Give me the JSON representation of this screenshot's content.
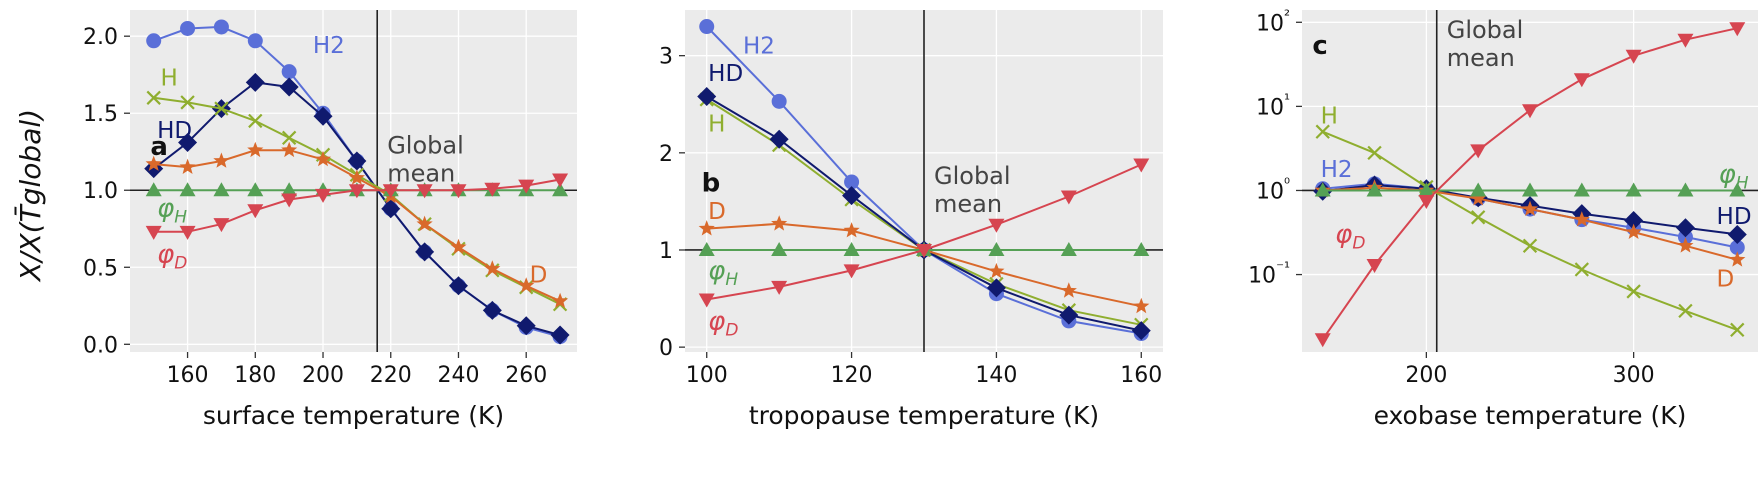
{
  "figure": {
    "ylabel": "X/X(T̄global)",
    "colors": {
      "H2": "#5a6fd8",
      "HD": "#101a6e",
      "H": "#8fae2f",
      "D": "#d9692b",
      "phi_H": "#55a055",
      "phi_D": "#d64550"
    }
  },
  "chart_data": [
    {
      "type": "line",
      "panel": "a",
      "xlabel": "surface temperature (K)",
      "ylabel": "X/X(T̄global)",
      "xlim": [
        143,
        275
      ],
      "ylim": [
        -0.05,
        2.17
      ],
      "yscale": "linear",
      "xticks": [
        160,
        180,
        200,
        220,
        240,
        260
      ],
      "yticks": [
        0.0,
        0.5,
        1.0,
        1.5,
        2.0
      ],
      "ytick_labels": [
        "0.0",
        "0.5",
        "1.0",
        "1.5",
        "2.0"
      ],
      "global_mean_x": 216,
      "annotation": [
        "Global",
        "mean"
      ],
      "grid": true,
      "series": [
        {
          "name": "H2",
          "key": "H2",
          "marker": "circle",
          "x": [
            150,
            160,
            170,
            180,
            190,
            200,
            210,
            220,
            230,
            240,
            250,
            260,
            270
          ],
          "y": [
            1.97,
            2.05,
            2.06,
            1.97,
            1.77,
            1.5,
            1.19,
            0.88,
            0.6,
            0.38,
            0.22,
            0.11,
            0.05
          ]
        },
        {
          "name": "HD",
          "key": "HD",
          "marker": "diamond",
          "x": [
            150,
            160,
            170,
            180,
            190,
            200,
            210,
            220,
            230,
            240,
            250,
            260,
            270
          ],
          "y": [
            1.14,
            1.31,
            1.53,
            1.7,
            1.67,
            1.48,
            1.19,
            0.88,
            0.6,
            0.38,
            0.22,
            0.12,
            0.06
          ]
        },
        {
          "name": "H",
          "key": "H",
          "marker": "x",
          "x": [
            150,
            160,
            170,
            180,
            190,
            200,
            210,
            220,
            230,
            240,
            250,
            260,
            270
          ],
          "y": [
            1.6,
            1.57,
            1.53,
            1.45,
            1.34,
            1.23,
            1.1,
            0.97,
            0.78,
            0.62,
            0.48,
            0.37,
            0.26
          ]
        },
        {
          "name": "D",
          "key": "D",
          "marker": "star",
          "x": [
            150,
            160,
            170,
            180,
            190,
            200,
            210,
            220,
            230,
            240,
            250,
            260,
            270
          ],
          "y": [
            1.17,
            1.15,
            1.19,
            1.26,
            1.26,
            1.2,
            1.08,
            0.96,
            0.78,
            0.63,
            0.49,
            0.38,
            0.28
          ]
        },
        {
          "name": "φH",
          "key": "phi_H",
          "marker": "triangle-up",
          "x": [
            150,
            160,
            170,
            180,
            190,
            200,
            210,
            220,
            230,
            240,
            250,
            260,
            270
          ],
          "y": [
            1.0,
            1.0,
            1.0,
            1.0,
            1.0,
            1.0,
            1.0,
            1.0,
            1.0,
            1.0,
            1.0,
            1.0,
            1.0
          ]
        },
        {
          "name": "φD",
          "key": "phi_D",
          "marker": "triangle-down",
          "x": [
            150,
            160,
            170,
            180,
            190,
            200,
            210,
            220,
            230,
            240,
            250,
            260,
            270
          ],
          "y": [
            0.73,
            0.73,
            0.78,
            0.87,
            0.94,
            0.97,
            1.0,
            1.0,
            1.0,
            1.0,
            1.01,
            1.03,
            1.07
          ]
        }
      ],
      "labels": [
        {
          "text": "H2",
          "key": "H2",
          "x": 197,
          "y": 1.89,
          "italic": false
        },
        {
          "text": "H",
          "key": "H",
          "x": 152,
          "y": 1.68,
          "italic": false
        },
        {
          "text": "HD",
          "key": "HD",
          "x": 151,
          "y": 1.34,
          "italic": false
        },
        {
          "text": "φH",
          "key": "phi_H",
          "x": 151,
          "y": 0.83,
          "italic": true
        },
        {
          "text": "D",
          "key": "D",
          "x": 261,
          "y": 0.4,
          "italic": false
        },
        {
          "text": "φD",
          "key": "phi_D",
          "x": 151,
          "y": 0.53,
          "italic": true
        }
      ]
    },
    {
      "type": "line",
      "panel": "b",
      "xlabel": "tropopause temperature (K)",
      "ylabel": "",
      "xlim": [
        97,
        163
      ],
      "ylim": [
        -0.05,
        3.47
      ],
      "yscale": "linear",
      "xticks": [
        100,
        120,
        140,
        160
      ],
      "yticks": [
        0,
        1,
        2,
        3
      ],
      "ytick_labels": [
        "0",
        "1",
        "2",
        "3"
      ],
      "global_mean_x": 130,
      "annotation": [
        "Global",
        "mean"
      ],
      "grid": true,
      "series": [
        {
          "name": "H2",
          "key": "H2",
          "marker": "circle",
          "x": [
            100,
            110,
            120,
            130,
            140,
            150,
            160
          ],
          "y": [
            3.3,
            2.53,
            1.7,
            1.0,
            0.55,
            0.27,
            0.14
          ]
        },
        {
          "name": "H",
          "key": "H",
          "marker": "x",
          "x": [
            100,
            110,
            120,
            130,
            140,
            150,
            160
          ],
          "y": [
            2.55,
            2.08,
            1.52,
            1.0,
            0.65,
            0.38,
            0.23
          ]
        },
        {
          "name": "HD",
          "key": "HD",
          "marker": "diamond",
          "x": [
            100,
            110,
            120,
            130,
            140,
            150,
            160
          ],
          "y": [
            2.58,
            2.14,
            1.56,
            1.0,
            0.61,
            0.33,
            0.17
          ]
        },
        {
          "name": "D",
          "key": "D",
          "marker": "star",
          "x": [
            100,
            110,
            120,
            130,
            140,
            150,
            160
          ],
          "y": [
            1.22,
            1.27,
            1.2,
            1.0,
            0.78,
            0.58,
            0.42
          ]
        },
        {
          "name": "φH",
          "key": "phi_H",
          "marker": "triangle-up",
          "x": [
            100,
            110,
            120,
            130,
            140,
            150,
            160
          ],
          "y": [
            1.0,
            1.0,
            1.0,
            1.0,
            1.0,
            1.0,
            1.0
          ]
        },
        {
          "name": "φD",
          "key": "phi_D",
          "marker": "triangle-down",
          "x": [
            100,
            110,
            120,
            130,
            140,
            150,
            160
          ],
          "y": [
            0.49,
            0.62,
            0.79,
            1.0,
            1.26,
            1.55,
            1.88
          ]
        }
      ],
      "labels": [
        {
          "text": "H2",
          "key": "H2",
          "x": 105,
          "y": 3.02,
          "italic": false
        },
        {
          "text": "HD",
          "key": "HD",
          "x": 100.2,
          "y": 2.74,
          "italic": false
        },
        {
          "text": "H",
          "key": "H",
          "x": 100.2,
          "y": 2.22,
          "italic": false
        },
        {
          "text": "D",
          "key": "D",
          "x": 100.2,
          "y": 1.32,
          "italic": false
        },
        {
          "text": "φH",
          "key": "phi_H",
          "x": 100.2,
          "y": 0.7,
          "italic": true
        },
        {
          "text": "φD",
          "key": "phi_D",
          "x": 100.2,
          "y": 0.18,
          "italic": true
        }
      ]
    },
    {
      "type": "line",
      "panel": "c",
      "xlabel": "exobase temperature (K)",
      "ylabel": "",
      "xlim": [
        140,
        360
      ],
      "ylim": [
        0.012,
        140
      ],
      "yscale": "log",
      "xticks": [
        200,
        300
      ],
      "yticks": [
        0.1,
        1,
        10,
        100
      ],
      "ytick_labels": [
        "10⁻¹",
        "10⁰",
        "10¹",
        "10²"
      ],
      "global_mean_x": 205,
      "annotation": [
        "Global",
        "mean"
      ],
      "grid": true,
      "series": [
        {
          "name": "H2",
          "key": "H2",
          "marker": "circle",
          "x": [
            150,
            175,
            200,
            225,
            250,
            275,
            300,
            325,
            350
          ],
          "y": [
            1.05,
            1.2,
            1.05,
            0.8,
            0.6,
            0.45,
            0.36,
            0.28,
            0.21
          ]
        },
        {
          "name": "HD",
          "key": "HD",
          "marker": "diamond",
          "x": [
            150,
            175,
            200,
            225,
            250,
            275,
            300,
            325,
            350
          ],
          "y": [
            0.98,
            1.16,
            1.05,
            0.82,
            0.66,
            0.53,
            0.44,
            0.36,
            0.3
          ]
        },
        {
          "name": "H",
          "key": "H",
          "marker": "x",
          "x": [
            150,
            175,
            200,
            225,
            250,
            275,
            300,
            325,
            350
          ],
          "y": [
            5.0,
            2.8,
            1.1,
            0.48,
            0.22,
            0.115,
            0.063,
            0.037,
            0.022
          ]
        },
        {
          "name": "D",
          "key": "D",
          "marker": "star",
          "x": [
            150,
            175,
            200,
            225,
            250,
            275,
            300,
            325,
            350
          ],
          "y": [
            1.0,
            1.08,
            1.0,
            0.8,
            0.6,
            0.45,
            0.32,
            0.22,
            0.15
          ]
        },
        {
          "name": "φH",
          "key": "phi_H",
          "marker": "triangle-up",
          "x": [
            150,
            175,
            200,
            225,
            250,
            275,
            300,
            325,
            350
          ],
          "y": [
            1.0,
            1.0,
            1.0,
            1.0,
            1.0,
            1.0,
            1.0,
            1.0,
            1.0
          ]
        },
        {
          "name": "φD",
          "key": "phi_D",
          "marker": "triangle-down",
          "x": [
            150,
            175,
            200,
            225,
            250,
            275,
            300,
            325,
            350
          ],
          "y": [
            0.017,
            0.13,
            0.75,
            3.0,
            9.0,
            21.0,
            40.0,
            62.0,
            85.0
          ]
        }
      ],
      "labels": [
        {
          "text": "H",
          "key": "H",
          "x": 149,
          "y": 6.3,
          "italic": false
        },
        {
          "text": "H2",
          "key": "H2",
          "x": 149,
          "y": 1.45,
          "italic": false
        },
        {
          "text": "φD",
          "key": "phi_D",
          "x": 156,
          "y": 0.24,
          "italic": true
        },
        {
          "text": "φH",
          "key": "phi_H",
          "x": 341,
          "y": 1.25,
          "italic": true
        },
        {
          "text": "HD",
          "key": "HD",
          "x": 340,
          "y": 0.4,
          "italic": false
        },
        {
          "text": "D",
          "key": "D",
          "x": 340,
          "y": 0.072,
          "italic": false
        }
      ]
    }
  ]
}
